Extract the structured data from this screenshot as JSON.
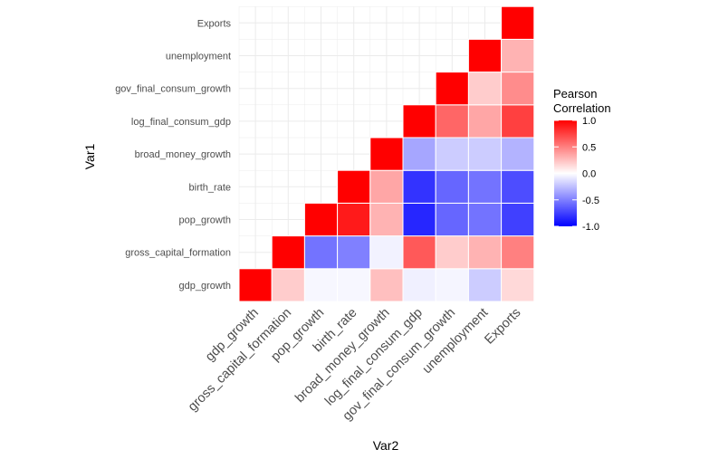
{
  "chart_data": {
    "type": "heatmap",
    "variables": [
      "gdp_growth",
      "gross_capital_formation",
      "pop_growth",
      "birth_rate",
      "broad_money_growth",
      "log_final_consum_gdp",
      "gov_final_consum_growth",
      "unemployment",
      "Exports"
    ],
    "cells": [
      {
        "var1": "gdp_growth",
        "var2": "gdp_growth",
        "value": 1.0
      },
      {
        "var1": "gdp_growth",
        "var2": "gross_capital_formation",
        "value": 0.2
      },
      {
        "var1": "gdp_growth",
        "var2": "pop_growth",
        "value": -0.03
      },
      {
        "var1": "gdp_growth",
        "var2": "birth_rate",
        "value": -0.03
      },
      {
        "var1": "gdp_growth",
        "var2": "broad_money_growth",
        "value": 0.25
      },
      {
        "var1": "gdp_growth",
        "var2": "log_final_consum_gdp",
        "value": -0.06
      },
      {
        "var1": "gdp_growth",
        "var2": "gov_final_consum_growth",
        "value": -0.04
      },
      {
        "var1": "gdp_growth",
        "var2": "unemployment",
        "value": -0.2
      },
      {
        "var1": "gdp_growth",
        "var2": "Exports",
        "value": 0.15
      },
      {
        "var1": "gross_capital_formation",
        "var2": "gross_capital_formation",
        "value": 1.0
      },
      {
        "var1": "gross_capital_formation",
        "var2": "pop_growth",
        "value": -0.55
      },
      {
        "var1": "gross_capital_formation",
        "var2": "birth_rate",
        "value": -0.5
      },
      {
        "var1": "gross_capital_formation",
        "var2": "broad_money_growth",
        "value": -0.05
      },
      {
        "var1": "gross_capital_formation",
        "var2": "log_final_consum_gdp",
        "value": 0.65
      },
      {
        "var1": "gross_capital_formation",
        "var2": "gov_final_consum_growth",
        "value": 0.2
      },
      {
        "var1": "gross_capital_formation",
        "var2": "unemployment",
        "value": 0.3
      },
      {
        "var1": "gross_capital_formation",
        "var2": "Exports",
        "value": 0.5
      },
      {
        "var1": "pop_growth",
        "var2": "pop_growth",
        "value": 1.0
      },
      {
        "var1": "pop_growth",
        "var2": "birth_rate",
        "value": 0.9
      },
      {
        "var1": "pop_growth",
        "var2": "broad_money_growth",
        "value": 0.3
      },
      {
        "var1": "pop_growth",
        "var2": "log_final_consum_gdp",
        "value": -0.85
      },
      {
        "var1": "pop_growth",
        "var2": "gov_final_consum_growth",
        "value": -0.6
      },
      {
        "var1": "pop_growth",
        "var2": "unemployment",
        "value": -0.55
      },
      {
        "var1": "pop_growth",
        "var2": "Exports",
        "value": -0.75
      },
      {
        "var1": "birth_rate",
        "var2": "birth_rate",
        "value": 1.0
      },
      {
        "var1": "birth_rate",
        "var2": "broad_money_growth",
        "value": 0.35
      },
      {
        "var1": "birth_rate",
        "var2": "log_final_consum_gdp",
        "value": -0.8
      },
      {
        "var1": "birth_rate",
        "var2": "gov_final_consum_growth",
        "value": -0.6
      },
      {
        "var1": "birth_rate",
        "var2": "unemployment",
        "value": -0.55
      },
      {
        "var1": "birth_rate",
        "var2": "Exports",
        "value": -0.7
      },
      {
        "var1": "broad_money_growth",
        "var2": "broad_money_growth",
        "value": 1.0
      },
      {
        "var1": "broad_money_growth",
        "var2": "log_final_consum_gdp",
        "value": -0.35
      },
      {
        "var1": "broad_money_growth",
        "var2": "gov_final_consum_growth",
        "value": -0.2
      },
      {
        "var1": "broad_money_growth",
        "var2": "unemployment",
        "value": -0.2
      },
      {
        "var1": "broad_money_growth",
        "var2": "Exports",
        "value": -0.3
      },
      {
        "var1": "log_final_consum_gdp",
        "var2": "log_final_consum_gdp",
        "value": 1.0
      },
      {
        "var1": "log_final_consum_gdp",
        "var2": "gov_final_consum_growth",
        "value": 0.6
      },
      {
        "var1": "log_final_consum_gdp",
        "var2": "unemployment",
        "value": 0.35
      },
      {
        "var1": "log_final_consum_gdp",
        "var2": "Exports",
        "value": 0.75
      },
      {
        "var1": "gov_final_consum_growth",
        "var2": "gov_final_consum_growth",
        "value": 1.0
      },
      {
        "var1": "gov_final_consum_growth",
        "var2": "unemployment",
        "value": 0.2
      },
      {
        "var1": "gov_final_consum_growth",
        "var2": "Exports",
        "value": 0.45
      },
      {
        "var1": "unemployment",
        "var2": "unemployment",
        "value": 1.0
      },
      {
        "var1": "unemployment",
        "var2": "Exports",
        "value": 0.3
      },
      {
        "var1": "Exports",
        "var2": "Exports",
        "value": 1.0
      }
    ],
    "xlabel": "Var2",
    "ylabel": "Var1",
    "legend": {
      "title_lines": [
        "Pearson",
        "Correlation"
      ],
      "ticks": [
        1.0,
        0.5,
        0.0,
        -0.5,
        -1.0
      ],
      "tick_labels": [
        "1.0",
        "0.5",
        "0.0",
        "-0.5",
        "-1.0"
      ],
      "limits": [
        -1,
        1
      ],
      "low_color": "#0000ff",
      "mid_color": "#ffffff",
      "high_color": "#ff0000",
      "position": "right"
    },
    "grid": true,
    "theme": "minimal"
  }
}
